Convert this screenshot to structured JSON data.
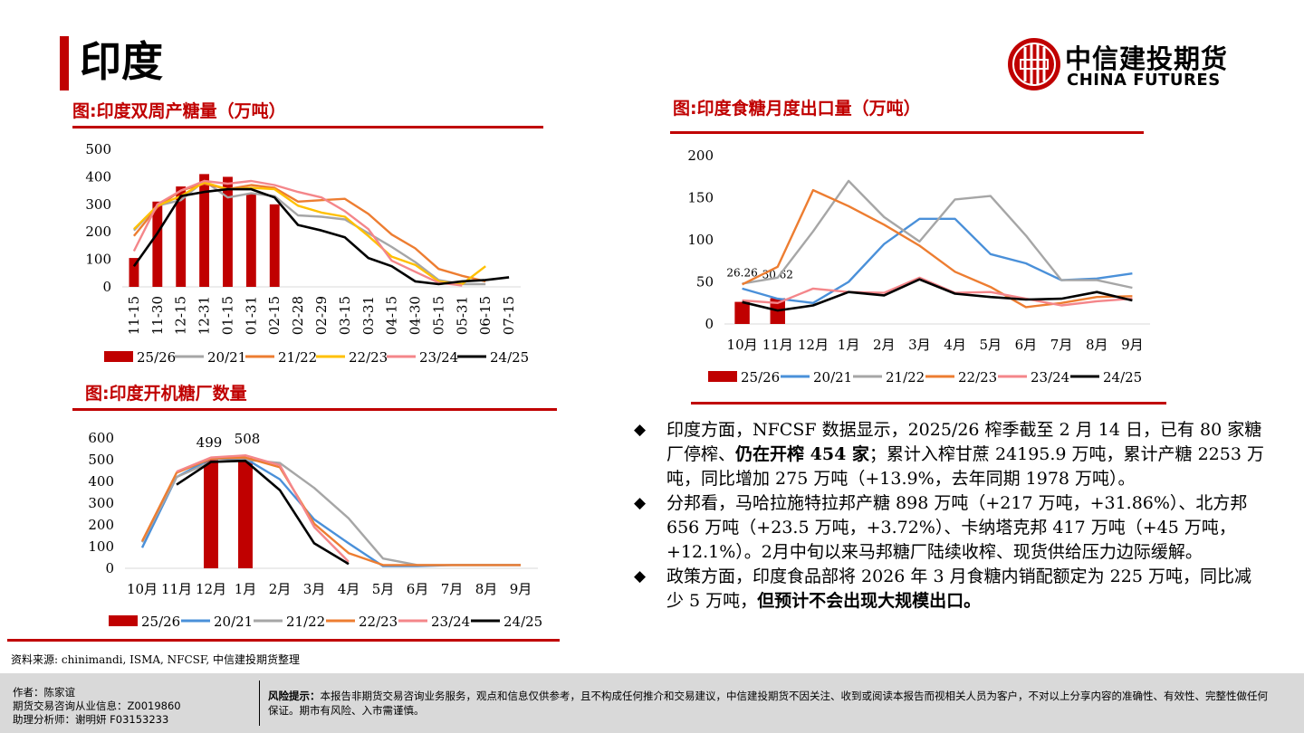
{
  "page": {
    "title": "印度"
  },
  "logo": {
    "cn": "中信建投期货",
    "en": "CHINA FUTURES",
    "brand_color": "#c00000"
  },
  "colors": {
    "accent": "#c00000",
    "s2526": "#c00000",
    "s2021": "#4a90d9",
    "s2122": "#a6a6a6",
    "s2223": "#ed7d31",
    "s2223_b": "#ffc000",
    "s2324": "#f4868a",
    "s2425": "#000000"
  },
  "chart1": {
    "fig_title": "图:印度双周产糖量（万吨）",
    "chart_data": {
      "type": "bar",
      "categories": [
        "11-15",
        "11-30",
        "12-15",
        "12-31",
        "01-15",
        "01-31",
        "02-15",
        "02-28",
        "02-29",
        "03-15",
        "03-31",
        "04-15",
        "04-30",
        "05-15",
        "05-31",
        "06-15",
        "07-15"
      ],
      "ylim": [
        0,
        500
      ],
      "yticks": [
        "0",
        "100",
        "200",
        "300",
        "400",
        "500"
      ],
      "bars": {
        "name": "25/26",
        "values": [
          105,
          310,
          365,
          410,
          400,
          340,
          300,
          null,
          null,
          null,
          null,
          null,
          null,
          null,
          null,
          null,
          null
        ]
      },
      "series": [
        {
          "name": "20/21",
          "values": [
            205,
            295,
            315,
            385,
            325,
            340,
            330,
            260,
            255,
            245,
            195,
            145,
            90,
            25,
            10,
            10,
            null
          ]
        },
        {
          "name": "21/22",
          "values": [
            185,
            290,
            350,
            375,
            355,
            370,
            360,
            310,
            315,
            320,
            265,
            190,
            140,
            65,
            40,
            20,
            null
          ]
        },
        {
          "name": "22/23",
          "values": [
            210,
            295,
            330,
            380,
            355,
            360,
            355,
            295,
            270,
            255,
            185,
            110,
            80,
            20,
            10,
            75,
            null
          ]
        },
        {
          "name": "23/24",
          "values": [
            130,
            300,
            350,
            385,
            375,
            385,
            370,
            345,
            325,
            275,
            210,
            95,
            55,
            15,
            5,
            null,
            null
          ]
        },
        {
          "name": "24/25",
          "values": [
            75,
            195,
            330,
            345,
            355,
            355,
            325,
            225,
            205,
            180,
            105,
            75,
            20,
            10,
            20,
            25,
            35
          ]
        }
      ],
      "legend": [
        "25/26",
        "20/21",
        "21/22",
        "22/23",
        "23/24",
        "24/25"
      ]
    }
  },
  "chart2": {
    "fig_title": "图:印度开机糖厂数量",
    "chart_data": {
      "type": "bar",
      "categories": [
        "10月",
        "11月",
        "12月",
        "1月",
        "2月",
        "3月",
        "4月",
        "5月",
        "6月",
        "7月",
        "8月",
        "9月"
      ],
      "ylim": [
        0,
        600
      ],
      "yticks": [
        "0",
        "100",
        "200",
        "300",
        "400",
        "500",
        "600"
      ],
      "bars": {
        "name": "25/26",
        "values": [
          null,
          null,
          499,
          508,
          null,
          null,
          null,
          null,
          null,
          null,
          null,
          null
        ]
      },
      "bar_labels": {
        "b2": "499",
        "b3": "508"
      },
      "series": [
        {
          "name": "20/21",
          "values": [
            95,
            420,
            505,
            505,
            410,
            225,
            115,
            10,
            10,
            15,
            15,
            15
          ]
        },
        {
          "name": "21/22",
          "values": [
            120,
            420,
            490,
            500,
            485,
            370,
            230,
            45,
            15,
            15,
            15,
            15
          ]
        },
        {
          "name": "22/23",
          "values": [
            125,
            440,
            505,
            510,
            465,
            205,
            70,
            15,
            15,
            15,
            15,
            15
          ]
        },
        {
          "name": "23/24",
          "values": [
            null,
            445,
            510,
            520,
            475,
            190,
            30,
            null,
            null,
            null,
            null,
            null
          ]
        },
        {
          "name": "24/25",
          "values": [
            null,
            385,
            490,
            495,
            360,
            115,
            20,
            null,
            null,
            null,
            null,
            null
          ]
        }
      ],
      "legend": [
        "25/26",
        "20/21",
        "21/22",
        "22/23",
        "23/24",
        "24/25"
      ]
    }
  },
  "chart3": {
    "fig_title": "图:印度食糖月度出口量（万吨）",
    "chart_data": {
      "type": "bar",
      "categories": [
        "10月",
        "11月",
        "12月",
        "1月",
        "2月",
        "3月",
        "4月",
        "5月",
        "6月",
        "7月",
        "8月",
        "9月"
      ],
      "ylim": [
        0,
        200
      ],
      "yticks": [
        "0",
        "50",
        "100",
        "150",
        "200"
      ],
      "bars": {
        "name": "25/26",
        "values": [
          26.26,
          30.62,
          null,
          null,
          null,
          null,
          null,
          null,
          null,
          null,
          null,
          null
        ]
      },
      "bar_labels": {
        "b0": "26.26",
        "b1": "30.62"
      },
      "series": [
        {
          "name": "20/21",
          "values": [
            42,
            30,
            25,
            50,
            95,
            125,
            125,
            83,
            72,
            52,
            54,
            60
          ]
        },
        {
          "name": "21/22",
          "values": [
            48,
            55,
            110,
            170,
            127,
            98,
            148,
            152,
            105,
            52,
            52,
            43
          ]
        },
        {
          "name": "22/23",
          "values": [
            47,
            68,
            159,
            140,
            118,
            93,
            62,
            44,
            20,
            25,
            32,
            33
          ]
        },
        {
          "name": "23/24",
          "values": [
            28,
            25,
            42,
            38,
            37,
            55,
            37,
            38,
            30,
            22,
            27,
            30
          ]
        },
        {
          "name": "24/25",
          "values": [
            26,
            16,
            22,
            38,
            34,
            53,
            36,
            32,
            29,
            30,
            38,
            28
          ]
        }
      ],
      "legend": [
        "25/26",
        "20/21",
        "21/22",
        "22/23",
        "23/24",
        "24/25"
      ]
    }
  },
  "bullets": {
    "b1_pre": "印度方面，NFCSF 数据显示，2025/26 榨季截至 2 月 14 日，已有 80 家糖厂停榨、",
    "b1_bold": "仍在开榨 454 家",
    "b1_post": "；累计入榨甘蔗 24195.9 万吨，累计产糖 2253 万吨，同比增加 275 万吨（+13.9%，去年同期 1978 万吨）。",
    "b2": "分邦看，马哈拉施特拉邦产糖 898 万吨（+217 万吨，+31.86%）、北方邦 656 万吨（+23.5 万吨，+3.72%）、卡纳塔克邦 417 万吨（+45 万吨，+12.1%）。2月中旬以来马邦糖厂陆续收榨、现货供给压力边际缓解。",
    "b3_pre": "政策方面，印度食品部将 2026 年 3 月食糖内销配额定为 225 万吨，同比减少 5 万吨，",
    "b3_bold": "但预计不会出现大规模出口。",
    "marker": "◆"
  },
  "source": "资料来源: chinimandi, ISMA, NFCSF, 中信建投期货整理",
  "footer": {
    "author": "作者：陈家谊",
    "license": "期货交易咨询从业信息：Z0019860",
    "assistant": "助理分析师：谢明妍 F03153233",
    "risk_label": "风险提示：",
    "risk_text": "本报告非期货交易咨询业务服务，观点和信息仅供参考，且不构成任何推介和交易建议，中信建投期货不因关注、收到或阅读本报告而视相关人员为客户，不对以上分享内容的准确性、有效性、完整性做任何保证。期市有风险、入市需谨慎。"
  }
}
